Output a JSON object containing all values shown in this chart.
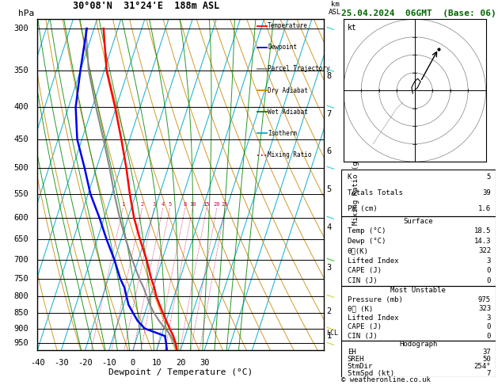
{
  "title_left": "30°08'N  31°24'E  188m ASL",
  "title_date": "25.04.2024  06GMT  (Base: 06)",
  "xlabel": "Dewpoint / Temperature (°C)",
  "pressure_ticks": [
    300,
    350,
    400,
    450,
    500,
    550,
    600,
    650,
    700,
    750,
    800,
    850,
    900,
    950
  ],
  "temp_range": [
    -40,
    35
  ],
  "temp_ticks": [
    -40,
    -30,
    -20,
    -10,
    0,
    10,
    20,
    30
  ],
  "pmin": 290,
  "pmax": 975,
  "skew": 45.0,
  "lcl_pressure": 915,
  "mixing_ratio_values": [
    1,
    2,
    3,
    4,
    5,
    8,
    10,
    15,
    20,
    25
  ],
  "km_pressure_map": {
    "1": 925,
    "2": 845,
    "3": 720,
    "4": 622,
    "5": 540,
    "6": 470,
    "7": 410,
    "8": 357
  },
  "temperature_profile": {
    "pressure": [
      975,
      950,
      925,
      900,
      875,
      850,
      825,
      800,
      775,
      750,
      700,
      650,
      600,
      550,
      500,
      450,
      400,
      350,
      300
    ],
    "temp": [
      18.5,
      17.0,
      15.0,
      12.5,
      10.0,
      7.5,
      5.0,
      2.5,
      0.5,
      -2.0,
      -6.5,
      -12.0,
      -17.5,
      -22.5,
      -27.5,
      -33.5,
      -40.5,
      -49.0,
      -56.0
    ]
  },
  "dewpoint_profile": {
    "pressure": [
      975,
      950,
      925,
      900,
      875,
      850,
      825,
      800,
      775,
      750,
      700,
      650,
      600,
      550,
      500,
      450,
      400,
      350,
      300
    ],
    "temp": [
      14.3,
      13.0,
      11.5,
      2.0,
      -2.0,
      -5.0,
      -8.0,
      -10.0,
      -12.0,
      -15.0,
      -20.0,
      -26.0,
      -32.0,
      -39.0,
      -45.0,
      -52.0,
      -57.0,
      -60.0,
      -63.0
    ]
  },
  "parcel_profile": {
    "pressure": [
      975,
      950,
      925,
      915,
      900,
      875,
      850,
      825,
      800,
      775,
      750,
      700,
      650,
      600,
      550,
      500,
      450,
      400,
      350,
      300
    ],
    "temp": [
      18.5,
      16.5,
      14.0,
      12.8,
      10.5,
      7.0,
      3.8,
      1.0,
      -1.5,
      -4.0,
      -7.0,
      -12.5,
      -18.0,
      -23.5,
      -29.0,
      -34.5,
      -41.0,
      -48.5,
      -56.5,
      -63.5
    ]
  },
  "color_temp": "#ff0000",
  "color_dewpoint": "#0000ee",
  "color_parcel": "#888888",
  "color_dry_adiabat": "#cc8800",
  "color_wet_adiabat": "#008800",
  "color_isotherm": "#00aacc",
  "color_mixing_ratio": "#cc0055",
  "legend_items": [
    [
      "Temperature",
      "#ff0000",
      "-"
    ],
    [
      "Dewpoint",
      "#0000ee",
      "-"
    ],
    [
      "Parcel Trajectory",
      "#888888",
      "-"
    ],
    [
      "Dry Adiabat",
      "#cc8800",
      "-"
    ],
    [
      "Wet Adiabat",
      "#008800",
      "-"
    ],
    [
      "Isotherm",
      "#00aacc",
      "-"
    ],
    [
      "Mixing Ratio",
      "#cc0055",
      ":"
    ]
  ],
  "info_table": {
    "K": "5",
    "Totals Totals": "39",
    "PW (cm)": "1.6",
    "Surface_Temp": "18.5",
    "Surface_Dewp": "14.3",
    "Surface_theta_e": "322",
    "Surface_LI": "3",
    "Surface_CAPE": "0",
    "Surface_CIN": "0",
    "MU_Pressure": "975",
    "MU_theta_e": "323",
    "MU_LI": "3",
    "MU_CAPE": "0",
    "MU_CIN": "0",
    "EH": "37",
    "SREH": "50",
    "StmDir": "254",
    "StmSpd": "7"
  }
}
